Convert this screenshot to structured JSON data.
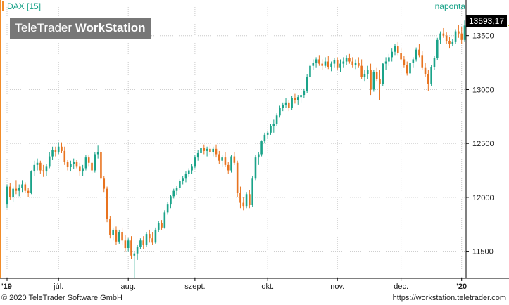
{
  "header": {
    "instrument": "DAX [15]",
    "period": "naponta",
    "last_value": "13593,17"
  },
  "watermark": {
    "brand_light": "TeleTrader ",
    "brand_bold": "WorkStation"
  },
  "footer": {
    "copyright": "© 2020 TeleTrader Software GmbH",
    "url": "https://workstation.teletrader.com"
  },
  "colors": {
    "up": "#1aa389",
    "down": "#e8731f",
    "grid": "#c8c8c8",
    "axis": "#000000"
  },
  "chart_data": {
    "type": "candlestick",
    "title": "DAX [15]",
    "y_ticks": [
      11500,
      12000,
      12500,
      13000,
      13500
    ],
    "y_tick_labels": [
      "11500",
      "12000",
      "12500",
      "13000",
      "13500"
    ],
    "ylim": [
      11250,
      13700
    ],
    "x_tick_labels": [
      "'19",
      "júl.",
      "aug.",
      "szept.",
      "okt.",
      "nov.",
      "dec.",
      "'20"
    ],
    "x_tick_candle_index": [
      0,
      17,
      40,
      62,
      86,
      109,
      130,
      150
    ],
    "grid": true,
    "candles": [
      [
        11940,
        12120,
        11900,
        12100
      ],
      [
        12100,
        12130,
        11980,
        12000
      ],
      [
        12000,
        12100,
        11960,
        12080
      ],
      [
        12080,
        12160,
        12030,
        12060
      ],
      [
        12060,
        12120,
        12010,
        12090
      ],
      [
        12090,
        12160,
        12050,
        12120
      ],
      [
        12120,
        12140,
        12040,
        12060
      ],
      [
        12060,
        12090,
        12000,
        12040
      ],
      [
        12040,
        12250,
        12030,
        12240
      ],
      [
        12240,
        12340,
        12200,
        12300
      ],
      [
        12300,
        12360,
        12250,
        12320
      ],
      [
        12320,
        12340,
        12220,
        12250
      ],
      [
        12250,
        12300,
        12190,
        12240
      ],
      [
        12240,
        12310,
        12200,
        12290
      ],
      [
        12290,
        12420,
        12270,
        12380
      ],
      [
        12380,
        12470,
        12350,
        12440
      ],
      [
        12440,
        12470,
        12380,
        12420
      ],
      [
        12420,
        12510,
        12400,
        12470
      ],
      [
        12470,
        12510,
        12410,
        12430
      ],
      [
        12430,
        12470,
        12300,
        12330
      ],
      [
        12330,
        12350,
        12250,
        12280
      ],
      [
        12280,
        12340,
        12240,
        12310
      ],
      [
        12310,
        12360,
        12260,
        12330
      ],
      [
        12330,
        12350,
        12270,
        12290
      ],
      [
        12290,
        12320,
        12200,
        12240
      ],
      [
        12240,
        12300,
        12200,
        12270
      ],
      [
        12270,
        12390,
        12250,
        12370
      ],
      [
        12370,
        12390,
        12290,
        12320
      ],
      [
        12320,
        12350,
        12220,
        12250
      ],
      [
        12250,
        12420,
        12230,
        12400
      ],
      [
        12400,
        12480,
        12360,
        12420
      ],
      [
        12420,
        12440,
        12160,
        12180
      ],
      [
        12180,
        12200,
        12050,
        12080
      ],
      [
        12080,
        12100,
        11770,
        11800
      ],
      [
        11800,
        11830,
        11620,
        11650
      ],
      [
        11650,
        11720,
        11600,
        11700
      ],
      [
        11700,
        11730,
        11560,
        11590
      ],
      [
        11590,
        11700,
        11570,
        11680
      ],
      [
        11680,
        11720,
        11560,
        11600
      ],
      [
        11600,
        11650,
        11500,
        11530
      ],
      [
        11530,
        11620,
        11500,
        11600
      ],
      [
        11600,
        11640,
        11430,
        11460
      ],
      [
        11460,
        11500,
        11250,
        11480
      ],
      [
        11480,
        11560,
        11420,
        11540
      ],
      [
        11540,
        11620,
        11520,
        11600
      ],
      [
        11600,
        11640,
        11520,
        11560
      ],
      [
        11560,
        11680,
        11540,
        11660
      ],
      [
        11660,
        11700,
        11580,
        11620
      ],
      [
        11620,
        11680,
        11560,
        11580
      ],
      [
        11580,
        11720,
        11570,
        11700
      ],
      [
        11700,
        11780,
        11680,
        11760
      ],
      [
        11760,
        11790,
        11700,
        11720
      ],
      [
        11720,
        11880,
        11710,
        11860
      ],
      [
        11860,
        11960,
        11840,
        11940
      ],
      [
        11940,
        12020,
        11900,
        12010
      ],
      [
        12010,
        12080,
        11990,
        12060
      ],
      [
        12060,
        12110,
        12020,
        12090
      ],
      [
        12090,
        12170,
        12070,
        12150
      ],
      [
        12150,
        12200,
        12120,
        12180
      ],
      [
        12180,
        12240,
        12140,
        12220
      ],
      [
        12220,
        12270,
        12190,
        12250
      ],
      [
        12250,
        12310,
        12220,
        12290
      ],
      [
        12290,
        12390,
        12270,
        12370
      ],
      [
        12370,
        12440,
        12340,
        12410
      ],
      [
        12410,
        12480,
        12380,
        12460
      ],
      [
        12460,
        12490,
        12400,
        12430
      ],
      [
        12430,
        12470,
        12380,
        12450
      ],
      [
        12450,
        12480,
        12390,
        12420
      ],
      [
        12420,
        12470,
        12380,
        12450
      ],
      [
        12450,
        12490,
        12370,
        12400
      ],
      [
        12400,
        12430,
        12310,
        12340
      ],
      [
        12340,
        12390,
        12280,
        12370
      ],
      [
        12370,
        12420,
        12280,
        12300
      ],
      [
        12300,
        12330,
        12220,
        12250
      ],
      [
        12250,
        12390,
        12230,
        12380
      ],
      [
        12380,
        12420,
        12300,
        12320
      ],
      [
        12320,
        12340,
        12000,
        12040
      ],
      [
        12040,
        12100,
        11900,
        11950
      ],
      [
        11950,
        12000,
        11880,
        11920
      ],
      [
        11920,
        12050,
        11900,
        12030
      ],
      [
        12030,
        12070,
        11900,
        11930
      ],
      [
        11930,
        12200,
        11910,
        12180
      ],
      [
        12180,
        12390,
        12160,
        12370
      ],
      [
        12370,
        12420,
        12300,
        12400
      ],
      [
        12400,
        12530,
        12380,
        12520
      ],
      [
        12520,
        12600,
        12500,
        12580
      ],
      [
        12580,
        12620,
        12540,
        12600
      ],
      [
        12600,
        12680,
        12580,
        12660
      ],
      [
        12660,
        12720,
        12600,
        12680
      ],
      [
        12680,
        12780,
        12660,
        12760
      ],
      [
        12760,
        12850,
        12740,
        12830
      ],
      [
        12830,
        12880,
        12800,
        12860
      ],
      [
        12860,
        12920,
        12830,
        12880
      ],
      [
        12880,
        12900,
        12800,
        12830
      ],
      [
        12830,
        12940,
        12810,
        12920
      ],
      [
        12920,
        12960,
        12870,
        12900
      ],
      [
        12900,
        12950,
        12860,
        12930
      ],
      [
        12930,
        12980,
        12880,
        12950
      ],
      [
        12950,
        13010,
        12920,
        12990
      ],
      [
        12990,
        13140,
        12970,
        13120
      ],
      [
        13120,
        13240,
        13100,
        13220
      ],
      [
        13220,
        13280,
        13180,
        13250
      ],
      [
        13250,
        13300,
        13200,
        13280
      ],
      [
        13280,
        13320,
        13220,
        13240
      ],
      [
        13240,
        13280,
        13180,
        13220
      ],
      [
        13220,
        13300,
        13200,
        13260
      ],
      [
        13260,
        13310,
        13190,
        13210
      ],
      [
        13210,
        13260,
        13170,
        13240
      ],
      [
        13240,
        13290,
        13200,
        13270
      ],
      [
        13270,
        13300,
        13180,
        13200
      ],
      [
        13200,
        13280,
        13160,
        13240
      ],
      [
        13240,
        13300,
        13200,
        13260
      ],
      [
        13260,
        13320,
        13230,
        13290
      ],
      [
        13290,
        13330,
        13240,
        13260
      ],
      [
        13260,
        13300,
        13200,
        13230
      ],
      [
        13230,
        13280,
        13190,
        13250
      ],
      [
        13250,
        13300,
        13200,
        13220
      ],
      [
        13220,
        13280,
        13100,
        13120
      ],
      [
        13120,
        13180,
        13080,
        13140
      ],
      [
        13140,
        13220,
        13100,
        13180
      ],
      [
        13180,
        13240,
        12950,
        13000
      ],
      [
        13000,
        13180,
        12980,
        13160
      ],
      [
        13160,
        13200,
        13080,
        13100
      ],
      [
        13100,
        13180,
        12900,
        13050
      ],
      [
        13050,
        13250,
        13030,
        13240
      ],
      [
        13240,
        13300,
        13180,
        13260
      ],
      [
        13260,
        13330,
        13220,
        13300
      ],
      [
        13300,
        13380,
        13260,
        13350
      ],
      [
        13350,
        13420,
        13320,
        13400
      ],
      [
        13400,
        13440,
        13320,
        13340
      ],
      [
        13340,
        13380,
        13260,
        13280
      ],
      [
        13280,
        13310,
        13200,
        13230
      ],
      [
        13230,
        13260,
        13130,
        13150
      ],
      [
        13150,
        13270,
        13120,
        13250
      ],
      [
        13250,
        13300,
        13200,
        13280
      ],
      [
        13280,
        13390,
        13260,
        13370
      ],
      [
        13370,
        13420,
        13300,
        13320
      ],
      [
        13320,
        13360,
        13180,
        13200
      ],
      [
        13200,
        13250,
        13120,
        13140
      ],
      [
        13140,
        13180,
        12990,
        13050
      ],
      [
        13050,
        13230,
        13030,
        13210
      ],
      [
        13210,
        13310,
        13180,
        13290
      ],
      [
        13290,
        13480,
        13270,
        13460
      ],
      [
        13460,
        13540,
        13420,
        13520
      ],
      [
        13520,
        13570,
        13480,
        13500
      ],
      [
        13500,
        13530,
        13420,
        13450
      ],
      [
        13450,
        13490,
        13380,
        13420
      ],
      [
        13420,
        13470,
        13400,
        13440
      ],
      [
        13440,
        13560,
        13420,
        13540
      ],
      [
        13540,
        13600,
        13480,
        13520
      ],
      [
        13520,
        13580,
        13420,
        13460
      ],
      [
        13460,
        13640,
        13440,
        13593.17
      ]
    ]
  }
}
